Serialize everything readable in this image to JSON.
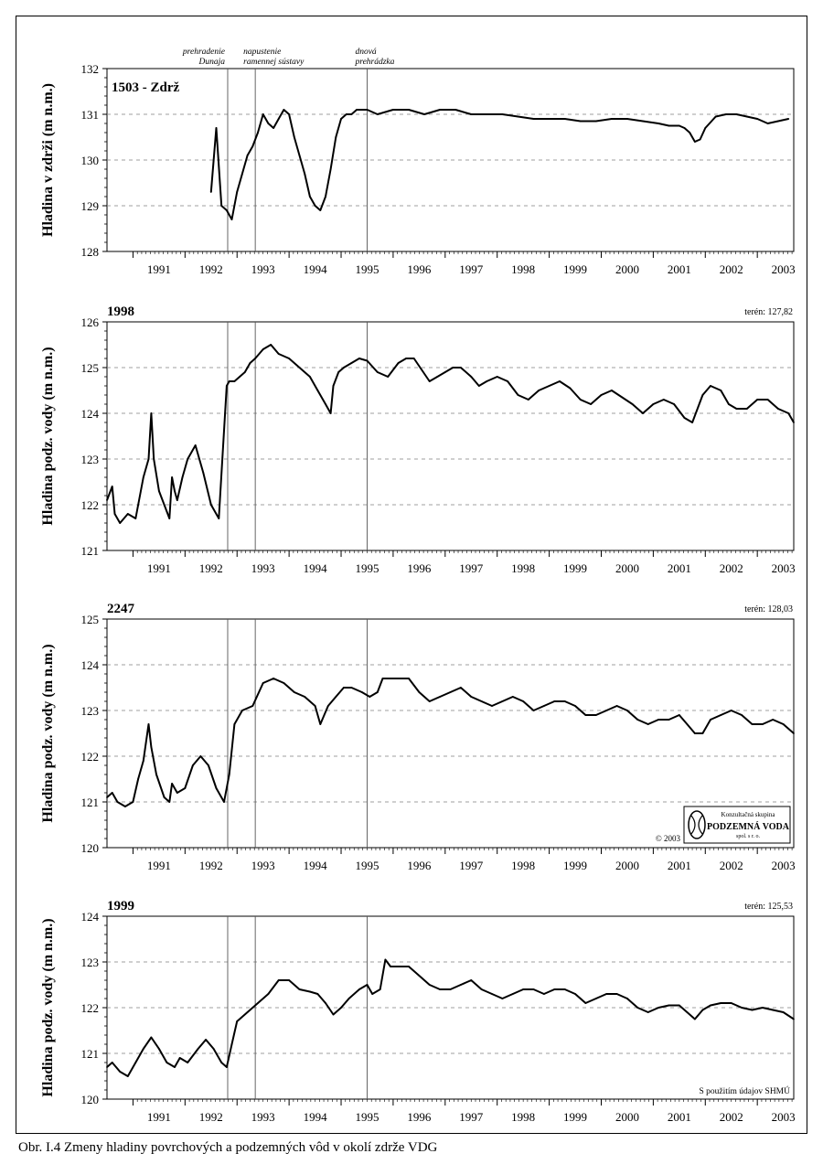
{
  "caption": "Obr. I.4 Zmeny hladiny povrchových a podzemných vôd v okolí zdrže VDG",
  "colors": {
    "line": "#000000",
    "grid": "#808080"
  },
  "logo": {
    "org_line1": "Konzultačná skupina",
    "org_line2": "PODZEMNÁ VODA",
    "org_line3": "spol. s r. o.",
    "copyright": "© 2003"
  },
  "source_note": "S použitím údajov SHMÚ",
  "events": [
    {
      "label": "prehradenie Dunaja",
      "line1": "prehradenie",
      "line2": "Dunaja",
      "date": 1992.82
    },
    {
      "label": "napustenie ramennej sústavy",
      "line1": "napustenie",
      "line2": "ramennej sústavy",
      "date": 1993.35
    },
    {
      "label": "dnová prehrádzka",
      "line1": "dnová",
      "line2": "prehrádzka",
      "date": 1995.5
    }
  ],
  "chart_data": [
    {
      "type": "line",
      "title": "1503 - Zdrž",
      "terrain_label": "",
      "ylabel": "Hladina v zdrži (m n.m.)",
      "xlim": [
        1990.5,
        2003.7
      ],
      "ylim": [
        128,
        132
      ],
      "yticks": [
        128,
        129,
        130,
        131,
        132
      ],
      "xtick_labels": [
        "1991",
        "1992",
        "1993",
        "1994",
        "1995",
        "1996",
        "1997",
        "1998",
        "1999",
        "2000",
        "2001",
        "2002",
        "2003"
      ],
      "grid": "horizontal dashed",
      "series": [
        {
          "x": [
            1992.5,
            1992.6,
            1992.7,
            1992.8,
            1992.9,
            1993.0,
            1993.1,
            1993.2,
            1993.3,
            1993.4,
            1993.5,
            1993.6,
            1993.7,
            1993.8,
            1993.9,
            1994.0,
            1994.1,
            1994.2,
            1994.3,
            1994.4,
            1994.5,
            1994.6,
            1994.7,
            1994.8,
            1994.9,
            1995.0,
            1995.1,
            1995.2,
            1995.3,
            1995.5,
            1995.7,
            1996.0,
            1996.3,
            1996.6,
            1996.9,
            1997.2,
            1997.5,
            1997.8,
            1998.1,
            1998.4,
            1998.7,
            1999.0,
            1999.3,
            1999.6,
            1999.9,
            2000.2,
            2000.5,
            2000.8,
            2001.1,
            2001.3,
            2001.5,
            2001.6,
            2001.7,
            2001.8,
            2001.9,
            2002.0,
            2002.2,
            2002.4,
            2002.6,
            2002.8,
            2003.0,
            2003.2,
            2003.4,
            2003.6
          ],
          "y": [
            129.3,
            130.7,
            129.0,
            128.9,
            128.7,
            129.3,
            129.7,
            130.1,
            130.3,
            130.6,
            131.0,
            130.8,
            130.7,
            130.9,
            131.1,
            131.0,
            130.5,
            130.1,
            129.7,
            129.2,
            129.0,
            128.9,
            129.2,
            129.8,
            130.5,
            130.9,
            131.0,
            131.0,
            131.1,
            131.1,
            131.0,
            131.1,
            131.1,
            131.0,
            131.1,
            131.1,
            131.0,
            131.0,
            131.0,
            130.95,
            130.9,
            130.9,
            130.9,
            130.85,
            130.85,
            130.9,
            130.9,
            130.85,
            130.8,
            130.75,
            130.75,
            130.7,
            130.6,
            130.4,
            130.45,
            130.7,
            130.95,
            131.0,
            131.0,
            130.95,
            130.9,
            130.8,
            130.85,
            130.9
          ]
        }
      ]
    },
    {
      "type": "line",
      "title": "1998",
      "terrain_label": "terén: 127,82",
      "ylabel": "Hladina podz. vody (m n.m.)",
      "xlim": [
        1990.5,
        2003.7
      ],
      "ylim": [
        121,
        126
      ],
      "yticks": [
        121,
        122,
        123,
        124,
        125,
        126
      ],
      "xtick_labels": [
        "1991",
        "1992",
        "1993",
        "1994",
        "1995",
        "1996",
        "1997",
        "1998",
        "1999",
        "2000",
        "2001",
        "2002",
        "2003"
      ],
      "grid": "horizontal dashed",
      "series": [
        {
          "x": [
            1990.5,
            1990.6,
            1990.65,
            1990.75,
            1990.9,
            1991.05,
            1991.2,
            1991.3,
            1991.35,
            1991.4,
            1991.5,
            1991.6,
            1991.7,
            1991.75,
            1991.8,
            1991.85,
            1991.95,
            1992.05,
            1992.2,
            1992.35,
            1992.5,
            1992.65,
            1992.8,
            1992.85,
            1992.95,
            1993.05,
            1993.15,
            1993.25,
            1993.35,
            1993.5,
            1993.65,
            1993.8,
            1994.0,
            1994.2,
            1994.4,
            1994.55,
            1994.7,
            1994.8,
            1994.85,
            1994.95,
            1995.05,
            1995.2,
            1995.35,
            1995.5,
            1995.7,
            1995.9,
            1996.1,
            1996.25,
            1996.4,
            1996.55,
            1996.7,
            1996.85,
            1997.0,
            1997.15,
            1997.3,
            1997.5,
            1997.65,
            1997.8,
            1998.0,
            1998.2,
            1998.4,
            1998.6,
            1998.8,
            1999.0,
            1999.2,
            1999.4,
            1999.6,
            1999.8,
            2000.0,
            2000.2,
            2000.4,
            2000.6,
            2000.8,
            2001.0,
            2001.2,
            2001.4,
            2001.6,
            2001.75,
            2001.95,
            2002.1,
            2002.3,
            2002.45,
            2002.6,
            2002.8,
            2003.0,
            2003.2,
            2003.4,
            2003.6,
            2003.7
          ],
          "y": [
            122.1,
            122.4,
            121.8,
            121.6,
            121.8,
            121.7,
            122.6,
            123.0,
            124.0,
            123.0,
            122.3,
            122.0,
            121.7,
            122.6,
            122.3,
            122.1,
            122.6,
            123.0,
            123.3,
            122.7,
            122.0,
            121.7,
            124.6,
            124.7,
            124.7,
            124.8,
            124.9,
            125.1,
            125.2,
            125.4,
            125.5,
            125.3,
            125.2,
            125.0,
            124.8,
            124.5,
            124.2,
            124.0,
            124.6,
            124.9,
            125.0,
            125.1,
            125.2,
            125.15,
            124.9,
            124.8,
            125.1,
            125.2,
            125.2,
            124.95,
            124.7,
            124.8,
            124.9,
            125.0,
            125.0,
            124.8,
            124.6,
            124.7,
            124.8,
            124.7,
            124.4,
            124.3,
            124.5,
            124.6,
            124.7,
            124.55,
            124.3,
            124.2,
            124.4,
            124.5,
            124.35,
            124.2,
            124.0,
            124.2,
            124.3,
            124.2,
            123.9,
            123.8,
            124.4,
            124.6,
            124.5,
            124.2,
            124.1,
            124.1,
            124.3,
            124.3,
            124.1,
            124.0,
            123.8
          ]
        }
      ]
    },
    {
      "type": "line",
      "title": "2247",
      "terrain_label": "terén: 128,03",
      "ylabel": "Hladina podz. vody (m n.m.)",
      "xlim": [
        1990.5,
        2003.7
      ],
      "ylim": [
        120,
        125
      ],
      "yticks": [
        120,
        121,
        122,
        123,
        124,
        125
      ],
      "xtick_labels": [
        "1991",
        "1992",
        "1993",
        "1994",
        "1995",
        "1996",
        "1997",
        "1998",
        "1999",
        "2000",
        "2001",
        "2002",
        "2003"
      ],
      "grid": "horizontal dashed",
      "series": [
        {
          "x": [
            1990.5,
            1990.6,
            1990.7,
            1990.85,
            1991.0,
            1991.1,
            1991.2,
            1991.3,
            1991.35,
            1991.45,
            1991.6,
            1991.7,
            1991.75,
            1991.85,
            1992.0,
            1992.15,
            1992.3,
            1992.45,
            1992.6,
            1992.75,
            1992.85,
            1992.95,
            1993.1,
            1993.3,
            1993.5,
            1993.7,
            1993.9,
            1994.1,
            1994.3,
            1994.5,
            1994.6,
            1994.75,
            1994.9,
            1995.05,
            1995.2,
            1995.4,
            1995.55,
            1995.7,
            1995.8,
            1995.95,
            1996.1,
            1996.3,
            1996.5,
            1996.7,
            1996.9,
            1997.1,
            1997.3,
            1997.5,
            1997.7,
            1997.9,
            1998.1,
            1998.3,
            1998.5,
            1998.7,
            1998.9,
            1999.1,
            1999.3,
            1999.5,
            1999.7,
            1999.9,
            2000.1,
            2000.3,
            2000.5,
            2000.7,
            2000.9,
            2001.1,
            2001.3,
            2001.5,
            2001.65,
            2001.8,
            2001.95,
            2002.1,
            2002.3,
            2002.5,
            2002.7,
            2002.9,
            2003.1,
            2003.3,
            2003.5,
            2003.7
          ],
          "y": [
            121.1,
            121.2,
            121.0,
            120.9,
            121.0,
            121.5,
            121.9,
            122.7,
            122.2,
            121.6,
            121.1,
            121.0,
            121.4,
            121.2,
            121.3,
            121.8,
            122.0,
            121.8,
            121.3,
            121.0,
            121.6,
            122.7,
            123.0,
            123.1,
            123.6,
            123.7,
            123.6,
            123.4,
            123.3,
            123.1,
            122.7,
            123.1,
            123.3,
            123.5,
            123.5,
            123.4,
            123.3,
            123.4,
            123.7,
            123.7,
            123.7,
            123.7,
            123.4,
            123.2,
            123.3,
            123.4,
            123.5,
            123.3,
            123.2,
            123.1,
            123.2,
            123.3,
            123.2,
            123.0,
            123.1,
            123.2,
            123.2,
            123.1,
            122.9,
            122.9,
            123.0,
            123.1,
            123.0,
            122.8,
            122.7,
            122.8,
            122.8,
            122.9,
            122.7,
            122.5,
            122.5,
            122.8,
            122.9,
            123.0,
            122.9,
            122.7,
            122.7,
            122.8,
            122.7,
            122.5
          ]
        }
      ]
    },
    {
      "type": "line",
      "title": "1999",
      "terrain_label": "terén: 125,53",
      "ylabel": "Hladina podz. vody (m n.m.)",
      "xlim": [
        1990.5,
        2003.7
      ],
      "ylim": [
        120,
        124
      ],
      "yticks": [
        120,
        121,
        122,
        123,
        124
      ],
      "xtick_labels": [
        "1991",
        "1992",
        "1993",
        "1994",
        "1995",
        "1996",
        "1997",
        "1998",
        "1999",
        "2000",
        "2001",
        "2002",
        "2003"
      ],
      "grid": "horizontal dashed",
      "series": [
        {
          "x": [
            1990.5,
            1990.6,
            1990.75,
            1990.9,
            1991.05,
            1991.2,
            1991.35,
            1991.5,
            1991.65,
            1991.8,
            1991.9,
            1992.05,
            1992.25,
            1992.4,
            1992.55,
            1992.7,
            1992.8,
            1992.9,
            1993.0,
            1993.2,
            1993.4,
            1993.6,
            1993.8,
            1994.0,
            1994.2,
            1994.4,
            1994.55,
            1994.7,
            1994.85,
            1995.0,
            1995.15,
            1995.35,
            1995.5,
            1995.6,
            1995.75,
            1995.85,
            1995.95,
            1996.1,
            1996.3,
            1996.5,
            1996.7,
            1996.9,
            1997.1,
            1997.3,
            1997.5,
            1997.7,
            1997.9,
            1998.1,
            1998.3,
            1998.5,
            1998.7,
            1998.9,
            1999.1,
            1999.3,
            1999.5,
            1999.7,
            1999.9,
            2000.1,
            2000.3,
            2000.5,
            2000.7,
            2000.9,
            2001.1,
            2001.3,
            2001.5,
            2001.65,
            2001.8,
            2001.95,
            2002.1,
            2002.3,
            2002.5,
            2002.7,
            2002.9,
            2003.1,
            2003.3,
            2003.5,
            2003.7
          ],
          "y": [
            120.7,
            120.8,
            120.6,
            120.5,
            120.8,
            121.1,
            121.35,
            121.1,
            120.8,
            120.7,
            120.9,
            120.8,
            121.1,
            121.3,
            121.1,
            120.8,
            120.7,
            121.2,
            121.7,
            121.9,
            122.1,
            122.3,
            122.6,
            122.6,
            122.4,
            122.35,
            122.3,
            122.1,
            121.85,
            122.0,
            122.2,
            122.4,
            122.5,
            122.3,
            122.4,
            123.05,
            122.9,
            122.9,
            122.9,
            122.7,
            122.5,
            122.4,
            122.4,
            122.5,
            122.6,
            122.4,
            122.3,
            122.2,
            122.3,
            122.4,
            122.4,
            122.3,
            122.4,
            122.4,
            122.3,
            122.1,
            122.2,
            122.3,
            122.3,
            122.2,
            122.0,
            121.9,
            122.0,
            122.05,
            122.05,
            121.9,
            121.75,
            121.95,
            122.05,
            122.1,
            122.1,
            122.0,
            121.95,
            122.0,
            121.95,
            121.9,
            121.75
          ]
        }
      ]
    }
  ]
}
